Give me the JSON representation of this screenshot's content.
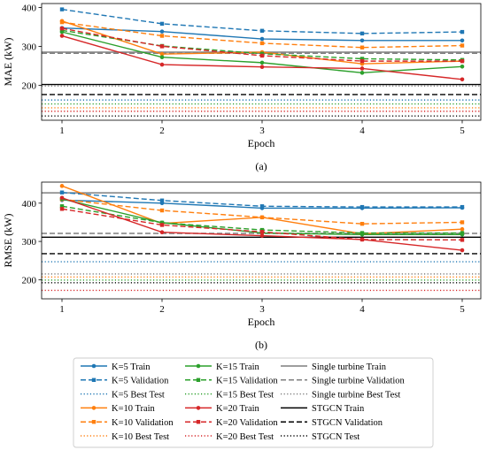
{
  "chart_data": [
    {
      "type": "line",
      "panel_label": "(a)",
      "xlabel": "Epoch",
      "ylabel": "MAE (kW)",
      "x": [
        1,
        2,
        3,
        4,
        5
      ],
      "xticks": [
        1,
        2,
        3,
        4,
        5
      ],
      "ylim": [
        110,
        410
      ],
      "yticks": [
        200,
        300,
        400
      ],
      "grid": false,
      "series": [
        {
          "name": "K=5 Train",
          "color": "#1f77b4",
          "style": "solid",
          "marker": "circle",
          "values": [
            347,
            338,
            319,
            315,
            315
          ]
        },
        {
          "name": "K=5 Validation",
          "color": "#1f77b4",
          "style": "dashed",
          "marker": "square",
          "values": [
            395,
            358,
            340,
            333,
            337
          ]
        },
        {
          "name": "K=10 Train",
          "color": "#ff7f0e",
          "style": "solid",
          "marker": "circle",
          "values": [
            365,
            280,
            285,
            255,
            262
          ]
        },
        {
          "name": "K=10 Validation",
          "color": "#ff7f0e",
          "style": "dashed",
          "marker": "square",
          "values": [
            362,
            327,
            308,
            297,
            302
          ]
        },
        {
          "name": "K=15 Train",
          "color": "#2ca02c",
          "style": "solid",
          "marker": "circle",
          "values": [
            337,
            272,
            258,
            232,
            248
          ]
        },
        {
          "name": "K=15 Validation",
          "color": "#2ca02c",
          "style": "dashed",
          "marker": "square",
          "values": [
            341,
            301,
            281,
            268,
            265
          ]
        },
        {
          "name": "K=20 Train",
          "color": "#d62728",
          "style": "solid",
          "marker": "circle",
          "values": [
            327,
            253,
            247,
            243,
            215
          ]
        },
        {
          "name": "K=20 Validation",
          "color": "#d62728",
          "style": "dashed",
          "marker": "square",
          "values": [
            346,
            300,
            276,
            262,
            262
          ]
        }
      ],
      "hlines": [
        {
          "name": "K=5 Best Test",
          "color": "#1f77b4",
          "style": "dotted",
          "value": 162
        },
        {
          "name": "K=10 Best Test",
          "color": "#ff7f0e",
          "style": "dotted",
          "value": 142
        },
        {
          "name": "K=15 Best Test",
          "color": "#2ca02c",
          "style": "dotted",
          "value": 152
        },
        {
          "name": "K=20 Best Test",
          "color": "#d62728",
          "style": "dotted",
          "value": 133
        },
        {
          "name": "Single turbine Train",
          "color": "#7f7f7f",
          "style": "solid",
          "value": 285
        },
        {
          "name": "Single turbine Validation",
          "color": "#7f7f7f",
          "style": "dashed",
          "value": 282
        },
        {
          "name": "Single turbine Best Test",
          "color": "#7f7f7f",
          "style": "dotted",
          "value": 198
        },
        {
          "name": "STGCN Train",
          "color": "#000000",
          "style": "solid",
          "value": 202
        },
        {
          "name": "STGCN Validation",
          "color": "#000000",
          "style": "dashed",
          "value": 176
        },
        {
          "name": "STGCN Test",
          "color": "#000000",
          "style": "dotted",
          "value": 121
        }
      ]
    },
    {
      "type": "line",
      "panel_label": "(b)",
      "xlabel": "Epoch",
      "ylabel": "RMSE (kW)",
      "x": [
        1,
        2,
        3,
        4,
        5
      ],
      "xticks": [
        1,
        2,
        3,
        4,
        5
      ],
      "ylim": [
        150,
        455
      ],
      "yticks": [
        200,
        300,
        400
      ],
      "grid": false,
      "series": [
        {
          "name": "K=5 Train",
          "color": "#1f77b4",
          "style": "solid",
          "marker": "circle",
          "values": [
            408,
            400,
            387,
            387,
            388
          ]
        },
        {
          "name": "K=5 Validation",
          "color": "#1f77b4",
          "style": "dashed",
          "marker": "square",
          "values": [
            428,
            407,
            392,
            390,
            390
          ]
        },
        {
          "name": "K=10 Train",
          "color": "#ff7f0e",
          "style": "solid",
          "marker": "circle",
          "values": [
            445,
            347,
            363,
            320,
            332
          ]
        },
        {
          "name": "K=10 Validation",
          "color": "#ff7f0e",
          "style": "dashed",
          "marker": "square",
          "values": [
            410,
            381,
            363,
            346,
            350
          ]
        },
        {
          "name": "K=15 Train",
          "color": "#2ca02c",
          "style": "solid",
          "marker": "circle",
          "values": [
            411,
            349,
            322,
            318,
            318
          ]
        },
        {
          "name": "K=15 Validation",
          "color": "#2ca02c",
          "style": "dashed",
          "marker": "square",
          "values": [
            392,
            349,
            330,
            322,
            322
          ]
        },
        {
          "name": "K=20 Train",
          "color": "#d62728",
          "style": "solid",
          "marker": "circle",
          "values": [
            414,
            324,
            315,
            305,
            277
          ]
        },
        {
          "name": "K=20 Validation",
          "color": "#d62728",
          "style": "dashed",
          "marker": "square",
          "values": [
            385,
            343,
            325,
            305,
            304
          ]
        }
      ],
      "hlines": [
        {
          "name": "K=5 Best Test",
          "color": "#1f77b4",
          "style": "dotted",
          "value": 247
        },
        {
          "name": "K=10 Best Test",
          "color": "#ff7f0e",
          "style": "dotted",
          "value": 207
        },
        {
          "name": "K=15 Best Test",
          "color": "#2ca02c",
          "style": "dotted",
          "value": 199
        },
        {
          "name": "K=20 Best Test",
          "color": "#d62728",
          "style": "dotted",
          "value": 172
        },
        {
          "name": "Single turbine Train",
          "color": "#7f7f7f",
          "style": "solid",
          "value": 427
        },
        {
          "name": "Single turbine Validation",
          "color": "#7f7f7f",
          "style": "dashed",
          "value": 321
        },
        {
          "name": "Single turbine Best Test",
          "color": "#7f7f7f",
          "style": "dotted",
          "value": 215
        },
        {
          "name": "STGCN Train",
          "color": "#000000",
          "style": "solid",
          "value": 311
        },
        {
          "name": "STGCN Validation",
          "color": "#000000",
          "style": "dashed",
          "value": 268
        },
        {
          "name": "STGCN Test",
          "color": "#000000",
          "style": "dotted",
          "value": 192
        }
      ]
    }
  ],
  "legend": {
    "columns": [
      [
        {
          "label": "K=5 Train",
          "color": "#1f77b4",
          "style": "solid",
          "marker": "circle"
        },
        {
          "label": "K=5 Validation",
          "color": "#1f77b4",
          "style": "dashed",
          "marker": "square"
        },
        {
          "label": "K=5 Best Test",
          "color": "#1f77b4",
          "style": "dotted",
          "marker": "none"
        },
        {
          "label": "K=10 Train",
          "color": "#ff7f0e",
          "style": "solid",
          "marker": "circle"
        },
        {
          "label": "K=10 Validation",
          "color": "#ff7f0e",
          "style": "dashed",
          "marker": "square"
        },
        {
          "label": "K=10 Best Test",
          "color": "#ff7f0e",
          "style": "dotted",
          "marker": "none"
        }
      ],
      [
        {
          "label": "K=15 Train",
          "color": "#2ca02c",
          "style": "solid",
          "marker": "circle"
        },
        {
          "label": "K=15 Validation",
          "color": "#2ca02c",
          "style": "dashed",
          "marker": "square"
        },
        {
          "label": "K=15 Best Test",
          "color": "#2ca02c",
          "style": "dotted",
          "marker": "none"
        },
        {
          "label": "K=20 Train",
          "color": "#d62728",
          "style": "solid",
          "marker": "circle"
        },
        {
          "label": "K=20 Validation",
          "color": "#d62728",
          "style": "dashed",
          "marker": "square"
        },
        {
          "label": "K=20 Best Test",
          "color": "#d62728",
          "style": "dotted",
          "marker": "none"
        }
      ],
      [
        {
          "label": "Single turbine Train",
          "color": "#7f7f7f",
          "style": "solid",
          "marker": "none"
        },
        {
          "label": "Single turbine Validation",
          "color": "#7f7f7f",
          "style": "dashed",
          "marker": "none"
        },
        {
          "label": "Single turbine Best Test",
          "color": "#7f7f7f",
          "style": "dotted",
          "marker": "none"
        },
        {
          "label": "STGCN Train",
          "color": "#000000",
          "style": "solid",
          "marker": "none"
        },
        {
          "label": "STGCN Validation",
          "color": "#000000",
          "style": "dashed",
          "marker": "none"
        },
        {
          "label": "STGCN Test",
          "color": "#000000",
          "style": "dotted",
          "marker": "none"
        }
      ]
    ]
  }
}
